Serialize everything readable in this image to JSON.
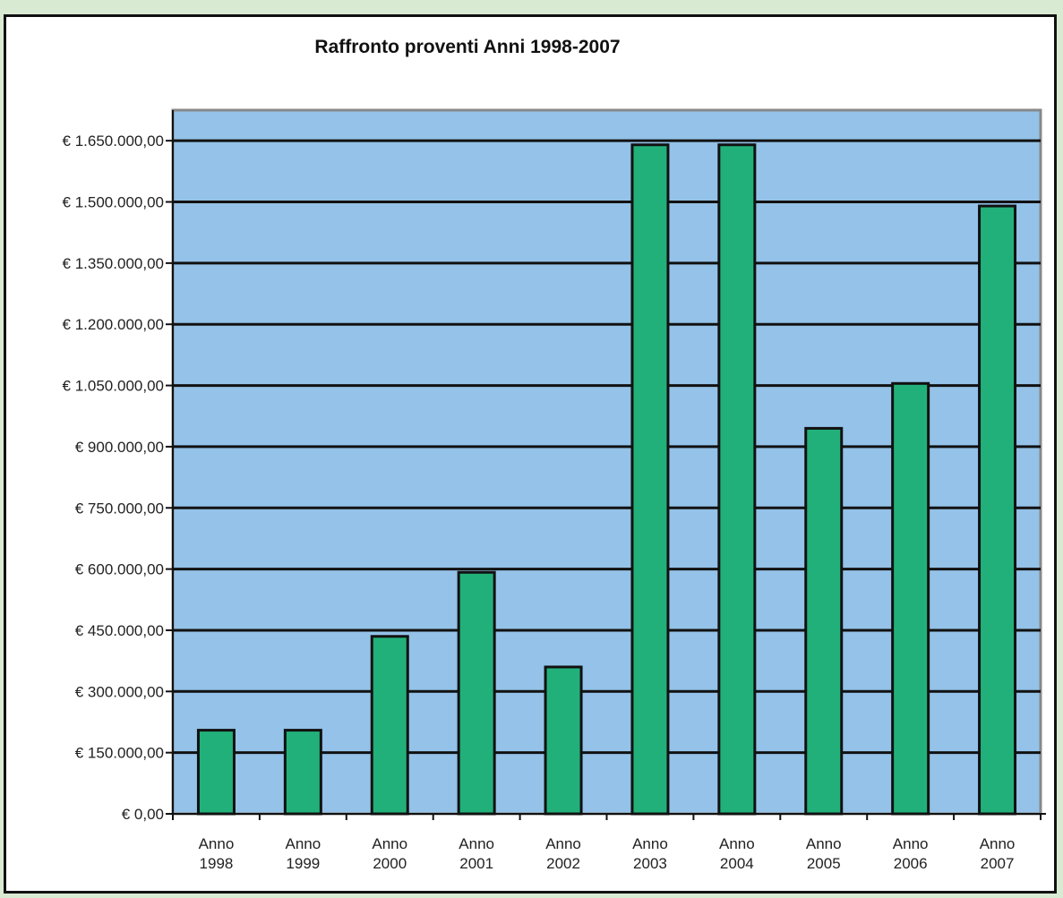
{
  "chart_data": {
    "type": "bar",
    "title": "Raffronto proventi Anni 1998-2007",
    "xlabel": "",
    "ylabel": "",
    "categories": [
      [
        "Anno",
        "1998"
      ],
      [
        "Anno",
        "1999"
      ],
      [
        "Anno",
        "2000"
      ],
      [
        "Anno",
        "2001"
      ],
      [
        "Anno",
        "2002"
      ],
      [
        "Anno",
        "2003"
      ],
      [
        "Anno",
        "2004"
      ],
      [
        "Anno",
        "2005"
      ],
      [
        "Anno",
        "2006"
      ],
      [
        "Anno",
        "2007"
      ]
    ],
    "values": [
      205000,
      205000,
      435000,
      592000,
      360000,
      1640000,
      1640000,
      945000,
      1055000,
      1490000
    ],
    "ylim": [
      0,
      1725000
    ],
    "yticks": [
      0,
      150000,
      300000,
      450000,
      600000,
      750000,
      900000,
      1050000,
      1200000,
      1350000,
      1500000,
      1650000
    ],
    "ytick_labels": [
      "€ 0,00",
      "€ 150.000,00",
      "€ 300.000,00",
      "€ 450.000,00",
      "€ 600.000,00",
      "€ 750.000,00",
      "€ 900.000,00",
      "€ 1.050.000,00",
      "€ 1.200.000,00",
      "€ 1.350.000,00",
      "€ 1.500.000,00",
      "€ 1.650.000,00"
    ],
    "grid": true,
    "legend": "none",
    "colors": {
      "plot_background": "#94c2e8",
      "bar_fill": "#22b07a",
      "bar_stroke": "#111111",
      "gridline": "#111111",
      "page_background": "#d9ead3"
    }
  }
}
